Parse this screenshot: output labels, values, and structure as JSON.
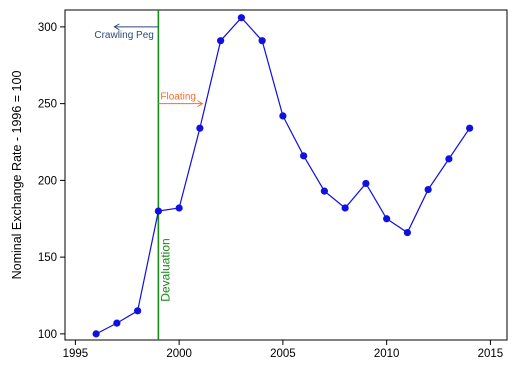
{
  "chart_data": {
    "type": "line",
    "title": "",
    "xlabel": "",
    "ylabel": "Nominal Exchange Rate - 1996 = 100",
    "xlim": [
      1994.5,
      2015.8
    ],
    "ylim": [
      96,
      311
    ],
    "xticks": [
      1995,
      2000,
      2005,
      2010,
      2015
    ],
    "yticks": [
      100,
      150,
      200,
      250,
      300
    ],
    "grid": false,
    "series": [
      {
        "x": [
          1996,
          1997,
          1998,
          1999,
          2000,
          2001,
          2002,
          2003,
          2004,
          2005,
          2006,
          2007,
          2008,
          2009,
          2010,
          2011,
          2012,
          2013,
          2014
        ],
        "values": [
          100,
          107,
          115,
          180,
          182,
          234,
          291,
          306,
          291,
          242,
          216,
          193,
          182,
          198,
          175,
          166,
          194,
          214,
          234
        ],
        "color": "#1010e0"
      }
    ],
    "vline": {
      "x": 1999,
      "label": "Devaluation",
      "color": "#178a17"
    },
    "annotations": [
      {
        "text": "Crawling Peg",
        "direction": "left",
        "color": "#2a4a7a",
        "y": 300
      },
      {
        "text": "Floating",
        "direction": "right",
        "color": "#ff6a2a",
        "y": 250
      }
    ]
  }
}
